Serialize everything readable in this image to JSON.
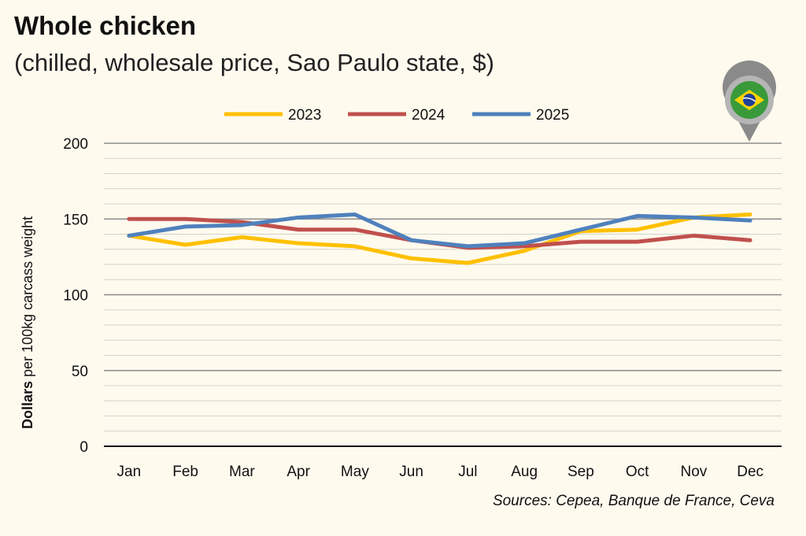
{
  "chart_data": {
    "type": "line",
    "title": "Whole chicken",
    "subtitle": "(chilled, wholesale price, Sao Paulo state, $)",
    "ylabel_bold": "Dollars",
    "ylabel_rest": " per 100kg carcass weight",
    "xlabel": "",
    "categories": [
      "Jan",
      "Feb",
      "Mar",
      "Apr",
      "May",
      "Jun",
      "Jul",
      "Aug",
      "Sep",
      "Oct",
      "Nov",
      "Dec"
    ],
    "ylim": [
      0,
      200
    ],
    "yticks": [
      0,
      50,
      100,
      150,
      200
    ],
    "grid": "horizontal major every 50, minor every 10",
    "legend": "top-center",
    "series": [
      {
        "name": "2023",
        "color": "#ffc000",
        "values": [
          139,
          133,
          138,
          134,
          132,
          124,
          121,
          129,
          142,
          143,
          151,
          153
        ]
      },
      {
        "name": "2024",
        "color": "#c0504d",
        "values": [
          150,
          150,
          148,
          143,
          143,
          136,
          131,
          132,
          135,
          135,
          139,
          136
        ]
      },
      {
        "name": "2025",
        "color": "#4f81bd",
        "values": [
          139,
          145,
          146,
          151,
          153,
          136,
          132,
          134,
          143,
          152,
          151,
          149
        ]
      }
    ]
  },
  "source": "Sources: Cepea, Banque de France, Ceva",
  "icon": "brazil-flag-map-pin-icon"
}
